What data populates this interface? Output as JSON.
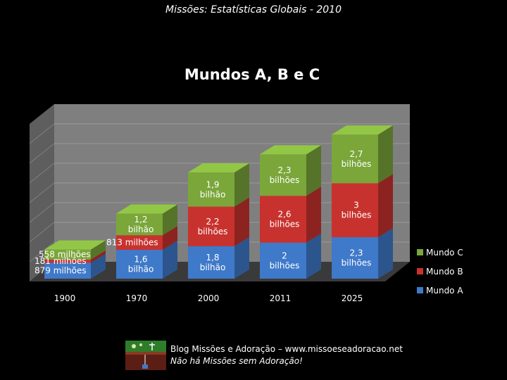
{
  "page_title": "Missões: Estatísticas Globais - 2010",
  "chart_data": {
    "type": "bar",
    "stacked": true,
    "title": "Mundos A, B e C",
    "categories": [
      "1900",
      "1970",
      "2000",
      "2011",
      "2025"
    ],
    "series": [
      {
        "name": "Mundo A",
        "color": "#3f79c9",
        "values": [
          879,
          1600,
          1800,
          2000,
          2300
        ],
        "labels": [
          "879 milhões",
          "1,6 bilhão",
          "1,8 bilhão",
          "2 bilhões",
          "2,3 bilhões"
        ]
      },
      {
        "name": "Mundo B",
        "color": "#c8322e",
        "values": [
          181,
          813,
          2200,
          2600,
          3000
        ],
        "labels": [
          "181 milhões",
          "813 milhões",
          "2,2 bilhões",
          "2,6 bilhões",
          "3 bilhões"
        ]
      },
      {
        "name": "Mundo C",
        "color": "#7aa63a",
        "values": [
          558,
          1200,
          1900,
          2300,
          2700
        ],
        "labels": [
          "558 milhões",
          "1,2 bilhão",
          "1,9 bilhão",
          "2,3 bilhões",
          "2,7 bilhões"
        ]
      }
    ],
    "legend": [
      "Mundo C",
      "Mundo B",
      "Mundo A"
    ],
    "legend_position": "right",
    "xlabel": "",
    "ylabel": "",
    "ylim": [
      0,
      9000
    ],
    "grid": true
  },
  "footer": {
    "line1": "Blog Missões e Adoração – www.missoeseadoracao.net",
    "line2": "Não há Missões sem Adoração!"
  }
}
